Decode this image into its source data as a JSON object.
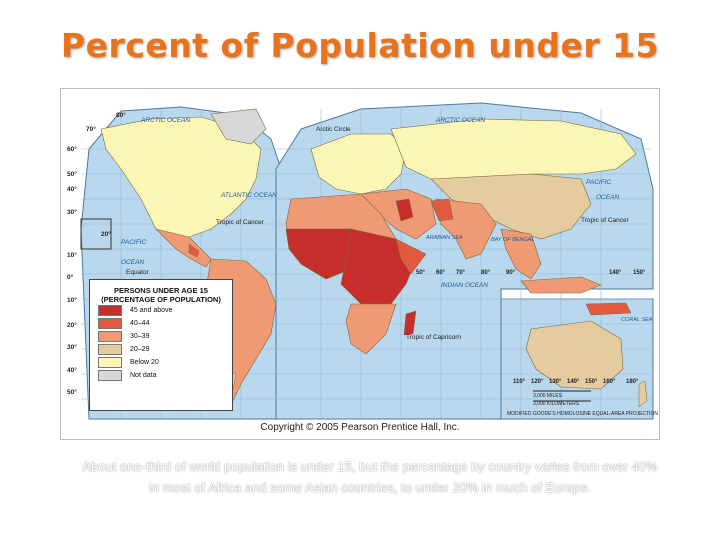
{
  "title": "Percent of Population under 15",
  "copyright": "Copyright © 2005 Pearson Prentice Hall, Inc.",
  "caption": "About one-third of world population is under 15, but the percentage by country varies from over 40% in most of Africa and some Asian countries, to under 20% in much of Europe.",
  "legend": {
    "title": "PERSONS UNDER AGE 15 (PERCENTAGE OF POPULATION)",
    "items": [
      {
        "label": "45 and above",
        "color": "#c62d2b"
      },
      {
        "label": "40–44",
        "color": "#e05a3f"
      },
      {
        "label": "30–39",
        "color": "#ef9a73"
      },
      {
        "label": "20–29",
        "color": "#e4cba0"
      },
      {
        "label": "Below 20",
        "color": "#fcf6b6"
      },
      {
        "label": "Not data",
        "color": "#d8d8d8"
      }
    ]
  },
  "map_labels": {
    "arctic_ocean_left": "ARCTIC OCEAN",
    "arctic_ocean_right": "ARCTIC OCEAN",
    "arctic_circle": "Arctic Circle",
    "atlantic_ocean": "ATLANTIC OCEAN",
    "pacific_ocean_left": "PACIFIC",
    "pacific_ocean_left_2": "OCEAN",
    "pacific_ocean_right": "PACIFIC",
    "pacific_ocean_right_2": "OCEAN",
    "tropic_of_cancer_left": "Tropic of Cancer",
    "tropic_of_cancer_right": "Tropic of Cancer",
    "equator": "Equator",
    "tropic_of_capricorn": "Tropic of Capricorn",
    "indian_ocean": "INDIAN OCEAN",
    "arabian_sea": "ARABIAN SEA",
    "bay_of_bengal": "BAY OF BENGAL",
    "coral_sea": "CORAL SEA",
    "scale_miles": "3,000 MILES",
    "scale_km": "3,000 KILOMETERS",
    "projection": "MODIFIED GOODE'S HOMOLOSINE EQUAL-AREA PROJECTION"
  },
  "lat_ticks": [
    "80°",
    "70°",
    "60°",
    "50°",
    "40°",
    "30°",
    "20°",
    "10°",
    "0°",
    "10°",
    "20°",
    "30°",
    "40°",
    "50°"
  ],
  "lon_ticks": [
    "50°",
    "60°",
    "70°",
    "80°",
    "90°",
    "140°",
    "150°",
    "110°",
    "120°",
    "130°",
    "140°",
    "150°",
    "160°",
    "180°"
  ]
}
